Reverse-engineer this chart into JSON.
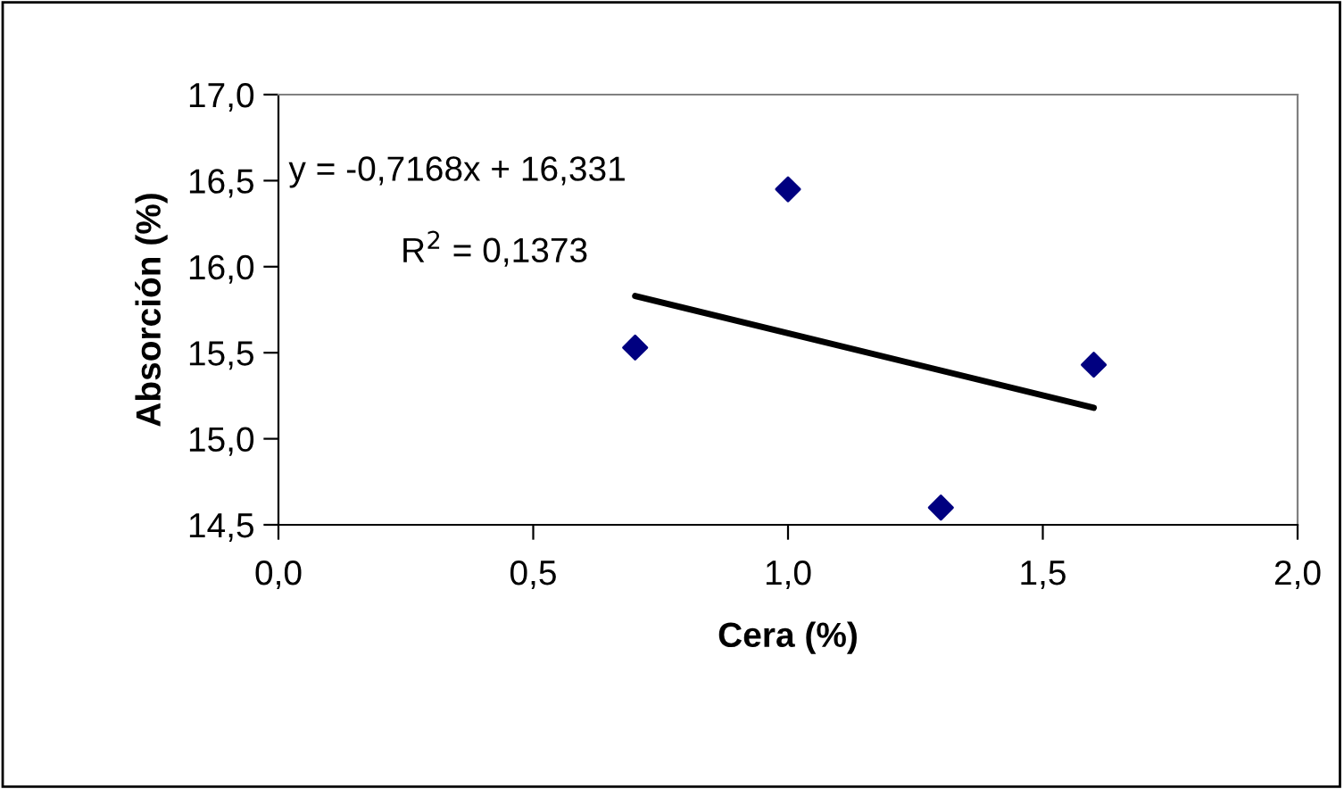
{
  "chart_data": {
    "type": "scatter",
    "xlabel": "Cera (%)",
    "ylabel": "Absorción (%)",
    "x": [
      0.7,
      1.0,
      1.3,
      1.6
    ],
    "series": [
      {
        "color": "#000080",
        "values": [
          15.53,
          16.45,
          14.6,
          15.43
        ],
        "marker": "diamond"
      },
      {
        "type": "line",
        "color": "#000000",
        "x": [
          0.7,
          1.6
        ],
        "values": [
          15.83,
          15.18
        ],
        "marker": "none",
        "line_style": "solid"
      }
    ],
    "xlim": [
      0,
      2
    ],
    "ylim": [
      14.5,
      17
    ],
    "xticks": [
      {
        "value": 0,
        "label": "0,0"
      },
      {
        "value": 0.5,
        "label": "0,5"
      },
      {
        "value": 1,
        "label": "1,0"
      },
      {
        "value": 1.5,
        "label": "1,5"
      },
      {
        "value": 2,
        "label": "2,0"
      }
    ],
    "yticks": [
      {
        "value": 14.5,
        "label": "14,5"
      },
      {
        "value": 15,
        "label": "15,0"
      },
      {
        "value": 15.5,
        "label": "15,5"
      },
      {
        "value": 16,
        "label": "16,0"
      },
      {
        "value": 16.5,
        "label": "16,5"
      },
      {
        "value": 17,
        "label": "17,0"
      }
    ],
    "annotations": [
      "y = -0,7168x + 16,331",
      "R$^{2}$ = 0,1373"
    ],
    "grid": false,
    "legend": false
  }
}
